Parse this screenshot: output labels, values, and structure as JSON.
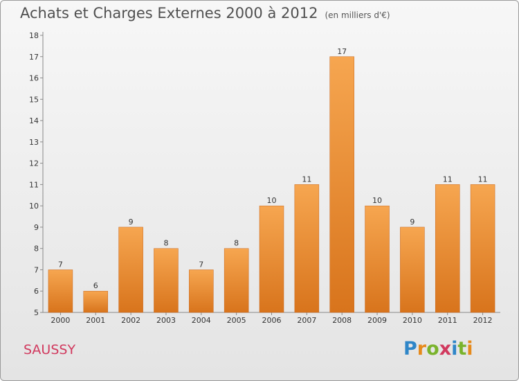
{
  "header": {
    "title": "Achats et Charges Externes 2000 à 2012",
    "unit": "(en milliers d'€)"
  },
  "footer": {
    "town": "SAUSSY",
    "logo_letters": [
      "P",
      "r",
      "o",
      "x",
      "i",
      "t",
      "i"
    ]
  },
  "colors": {
    "bar_top": "#f6a650",
    "bar_bottom": "#d8741c",
    "title": "#4f4f4f",
    "town": "#d1395e"
  },
  "chart_data": {
    "type": "bar",
    "title": "Achats et Charges Externes 2000 à 2012",
    "subtitle": "(en milliers d'€)",
    "xlabel": "",
    "ylabel": "",
    "categories": [
      "2000",
      "2001",
      "2002",
      "2003",
      "2004",
      "2005",
      "2006",
      "2007",
      "2008",
      "2009",
      "2010",
      "2011",
      "2012"
    ],
    "values": [
      7,
      6,
      9,
      8,
      7,
      8,
      10,
      11,
      17,
      10,
      9,
      11,
      11
    ],
    "ylim": [
      5,
      18
    ],
    "yticks": [
      5,
      6,
      7,
      8,
      9,
      10,
      11,
      12,
      13,
      14,
      15,
      16,
      17,
      18
    ],
    "grid": false,
    "data_labels": true
  }
}
